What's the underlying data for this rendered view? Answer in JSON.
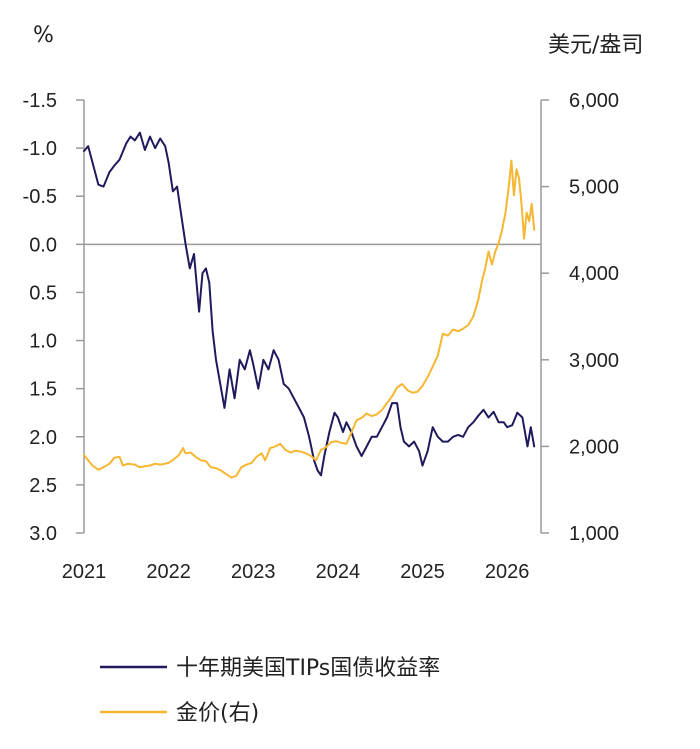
{
  "chart_data": {
    "type": "line",
    "left_unit": "%",
    "right_unit": "美元/盎司",
    "x_ticks": [
      "2021",
      "2022",
      "2023",
      "2024",
      "2025",
      "2026"
    ],
    "left_axis": {
      "reversed": true,
      "range": [
        -1.5,
        3.0
      ],
      "tick_labels": [
        "-1.5",
        "-1.0",
        "-0.5",
        "0.0",
        "0.5",
        "1.0",
        "1.5",
        "2.0",
        "2.5",
        "3.0"
      ]
    },
    "right_axis": {
      "range": [
        1000,
        6000
      ],
      "tick_labels": [
        "6,000",
        "5,000",
        "4,000",
        "3,000",
        "2,000",
        "1,000"
      ]
    },
    "series": [
      {
        "name": "十年期美国TIPs国债收益率",
        "axis": "left",
        "color": "#1f1a5c",
        "points": [
          [
            2021.0,
            -0.97
          ],
          [
            2021.05,
            -1.02
          ],
          [
            2021.1,
            -0.85
          ],
          [
            2021.17,
            -0.62
          ],
          [
            2021.23,
            -0.6
          ],
          [
            2021.3,
            -0.75
          ],
          [
            2021.36,
            -0.82
          ],
          [
            2021.42,
            -0.88
          ],
          [
            2021.5,
            -1.05
          ],
          [
            2021.55,
            -1.12
          ],
          [
            2021.6,
            -1.08
          ],
          [
            2021.66,
            -1.16
          ],
          [
            2021.72,
            -0.98
          ],
          [
            2021.78,
            -1.12
          ],
          [
            2021.84,
            -1.0
          ],
          [
            2021.9,
            -1.1
          ],
          [
            2021.96,
            -1.02
          ],
          [
            2022.0,
            -0.85
          ],
          [
            2022.05,
            -0.55
          ],
          [
            2022.1,
            -0.6
          ],
          [
            2022.15,
            -0.3
          ],
          [
            2022.2,
            0.0
          ],
          [
            2022.25,
            0.25
          ],
          [
            2022.3,
            0.1
          ],
          [
            2022.36,
            0.7
          ],
          [
            2022.4,
            0.3
          ],
          [
            2022.44,
            0.25
          ],
          [
            2022.48,
            0.4
          ],
          [
            2022.52,
            0.9
          ],
          [
            2022.56,
            1.2
          ],
          [
            2022.62,
            1.5
          ],
          [
            2022.66,
            1.7
          ],
          [
            2022.72,
            1.3
          ],
          [
            2022.78,
            1.6
          ],
          [
            2022.84,
            1.2
          ],
          [
            2022.9,
            1.3
          ],
          [
            2022.96,
            1.1
          ],
          [
            2023.0,
            1.25
          ],
          [
            2023.06,
            1.5
          ],
          [
            2023.12,
            1.2
          ],
          [
            2023.18,
            1.3
          ],
          [
            2023.24,
            1.1
          ],
          [
            2023.3,
            1.2
          ],
          [
            2023.36,
            1.45
          ],
          [
            2023.42,
            1.5
          ],
          [
            2023.48,
            1.6
          ],
          [
            2023.54,
            1.7
          ],
          [
            2023.6,
            1.8
          ],
          [
            2023.66,
            2.0
          ],
          [
            2023.72,
            2.25
          ],
          [
            2023.76,
            2.35
          ],
          [
            2023.8,
            2.4
          ],
          [
            2023.84,
            2.2
          ],
          [
            2023.9,
            1.95
          ],
          [
            2023.96,
            1.75
          ],
          [
            2024.0,
            1.8
          ],
          [
            2024.06,
            1.95
          ],
          [
            2024.1,
            1.85
          ],
          [
            2024.16,
            1.95
          ],
          [
            2024.22,
            2.1
          ],
          [
            2024.28,
            2.2
          ],
          [
            2024.34,
            2.1
          ],
          [
            2024.4,
            2.0
          ],
          [
            2024.46,
            2.0
          ],
          [
            2024.52,
            1.9
          ],
          [
            2024.58,
            1.8
          ],
          [
            2024.64,
            1.65
          ],
          [
            2024.7,
            1.65
          ],
          [
            2024.74,
            1.9
          ],
          [
            2024.78,
            2.05
          ],
          [
            2024.84,
            2.1
          ],
          [
            2024.9,
            2.05
          ],
          [
            2024.96,
            2.15
          ],
          [
            2025.0,
            2.3
          ],
          [
            2025.06,
            2.15
          ],
          [
            2025.12,
            1.9
          ],
          [
            2025.18,
            2.0
          ],
          [
            2025.24,
            2.05
          ],
          [
            2025.3,
            2.05
          ],
          [
            2025.36,
            2.0
          ],
          [
            2025.42,
            1.98
          ],
          [
            2025.48,
            2.0
          ],
          [
            2025.54,
            1.9
          ],
          [
            2025.6,
            1.85
          ],
          [
            2025.66,
            1.78
          ],
          [
            2025.72,
            1.72
          ],
          [
            2025.78,
            1.8
          ],
          [
            2025.84,
            1.74
          ],
          [
            2025.9,
            1.85
          ],
          [
            2025.96,
            1.85
          ],
          [
            2026.0,
            1.9
          ],
          [
            2026.06,
            1.88
          ],
          [
            2026.12,
            1.75
          ],
          [
            2026.18,
            1.8
          ],
          [
            2026.24,
            2.1
          ],
          [
            2026.28,
            1.9
          ],
          [
            2026.32,
            2.1
          ]
        ]
      },
      {
        "name": "金价(右)",
        "axis": "right",
        "color": "#f5b731",
        "points": [
          [
            2021.0,
            1900
          ],
          [
            2021.05,
            1840
          ],
          [
            2021.1,
            1780
          ],
          [
            2021.17,
            1730
          ],
          [
            2021.23,
            1760
          ],
          [
            2021.3,
            1800
          ],
          [
            2021.36,
            1870
          ],
          [
            2021.42,
            1880
          ],
          [
            2021.46,
            1780
          ],
          [
            2021.52,
            1800
          ],
          [
            2021.6,
            1790
          ],
          [
            2021.66,
            1760
          ],
          [
            2021.72,
            1770
          ],
          [
            2021.78,
            1780
          ],
          [
            2021.84,
            1800
          ],
          [
            2021.9,
            1790
          ],
          [
            2021.96,
            1800
          ],
          [
            2022.0,
            1810
          ],
          [
            2022.06,
            1850
          ],
          [
            2022.12,
            1900
          ],
          [
            2022.17,
            1980
          ],
          [
            2022.2,
            1920
          ],
          [
            2022.26,
            1930
          ],
          [
            2022.32,
            1880
          ],
          [
            2022.38,
            1840
          ],
          [
            2022.44,
            1830
          ],
          [
            2022.5,
            1760
          ],
          [
            2022.56,
            1750
          ],
          [
            2022.62,
            1720
          ],
          [
            2022.68,
            1680
          ],
          [
            2022.74,
            1640
          ],
          [
            2022.8,
            1660
          ],
          [
            2022.86,
            1760
          ],
          [
            2022.92,
            1790
          ],
          [
            2022.98,
            1810
          ],
          [
            2023.04,
            1880
          ],
          [
            2023.1,
            1920
          ],
          [
            2023.14,
            1840
          ],
          [
            2023.2,
            1980
          ],
          [
            2023.26,
            2000
          ],
          [
            2023.32,
            2030
          ],
          [
            2023.38,
            1960
          ],
          [
            2023.44,
            1930
          ],
          [
            2023.5,
            1950
          ],
          [
            2023.56,
            1940
          ],
          [
            2023.62,
            1920
          ],
          [
            2023.68,
            1890
          ],
          [
            2023.74,
            1840
          ],
          [
            2023.8,
            1960
          ],
          [
            2023.86,
            1990
          ],
          [
            2023.92,
            2050
          ],
          [
            2023.98,
            2060
          ],
          [
            2024.04,
            2040
          ],
          [
            2024.1,
            2030
          ],
          [
            2024.16,
            2160
          ],
          [
            2024.22,
            2300
          ],
          [
            2024.28,
            2330
          ],
          [
            2024.34,
            2380
          ],
          [
            2024.4,
            2350
          ],
          [
            2024.46,
            2370
          ],
          [
            2024.52,
            2420
          ],
          [
            2024.58,
            2500
          ],
          [
            2024.64,
            2580
          ],
          [
            2024.7,
            2680
          ],
          [
            2024.76,
            2720
          ],
          [
            2024.82,
            2650
          ],
          [
            2024.88,
            2620
          ],
          [
            2024.94,
            2630
          ],
          [
            2025.0,
            2700
          ],
          [
            2025.06,
            2800
          ],
          [
            2025.12,
            2920
          ],
          [
            2025.18,
            3050
          ],
          [
            2025.24,
            3300
          ],
          [
            2025.3,
            3280
          ],
          [
            2025.36,
            3350
          ],
          [
            2025.42,
            3330
          ],
          [
            2025.48,
            3360
          ],
          [
            2025.54,
            3400
          ],
          [
            2025.6,
            3500
          ],
          [
            2025.66,
            3700
          ],
          [
            2025.7,
            3900
          ],
          [
            2025.74,
            4050
          ],
          [
            2025.78,
            4250
          ],
          [
            2025.82,
            4100
          ],
          [
            2025.86,
            4250
          ],
          [
            2025.9,
            4350
          ],
          [
            2025.94,
            4500
          ],
          [
            2025.98,
            4700
          ],
          [
            2026.02,
            5000
          ],
          [
            2026.05,
            5300
          ],
          [
            2026.08,
            4900
          ],
          [
            2026.11,
            5200
          ],
          [
            2026.14,
            5100
          ],
          [
            2026.17,
            4800
          ],
          [
            2026.2,
            4400
          ],
          [
            2026.23,
            4700
          ],
          [
            2026.26,
            4600
          ],
          [
            2026.29,
            4800
          ],
          [
            2026.32,
            4500
          ]
        ]
      }
    ]
  }
}
